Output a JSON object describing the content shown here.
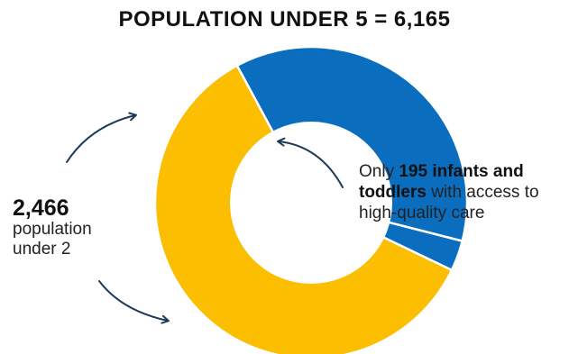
{
  "header": {
    "title": "POPULATION UNDER 5 = 6,165"
  },
  "chart_data": {
    "type": "pie",
    "title": "POPULATION UNDER 5 = 6,165",
    "total": 6165,
    "slices": [
      {
        "value": 2271,
        "color": "#0a6dbd"
      },
      {
        "value": 195,
        "color": "#0a6dbd"
      },
      {
        "value": 3699,
        "color": "#fbbe00"
      }
    ]
  },
  "notes": {
    "under2_value": "2,466",
    "under2_line1": "population",
    "under2_line2": "under 2",
    "care_prefix": "Only ",
    "care_bold": "195 infants and toddlers",
    "care_suffix": " with access to high-quality care"
  },
  "colors": {
    "blue": "#0a6dbd",
    "yellow": "#fbbe00",
    "arrow": "#1f3a57"
  }
}
